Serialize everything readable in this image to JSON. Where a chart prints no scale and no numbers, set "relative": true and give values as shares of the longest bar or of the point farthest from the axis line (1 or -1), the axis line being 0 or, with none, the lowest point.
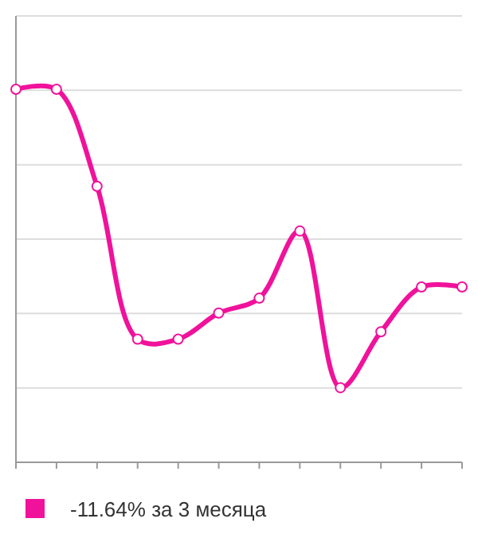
{
  "chart_data": {
    "type": "line",
    "relative": true,
    "categories": [
      null,
      null,
      null,
      null,
      null,
      null,
      null,
      null,
      null,
      null,
      null,
      null
    ],
    "series": [
      {
        "name": "-11.64% за 3 месяца",
        "color": "#f0129b",
        "values": [
          1,
          1,
          0.74,
          0.33,
          0.33,
          0.4,
          0.44,
          0.62,
          0.2,
          0.35,
          0.47,
          0.47
        ]
      }
    ],
    "grid": true,
    "legend": "bottom",
    "marker": "circle",
    "line_style": "solid"
  }
}
